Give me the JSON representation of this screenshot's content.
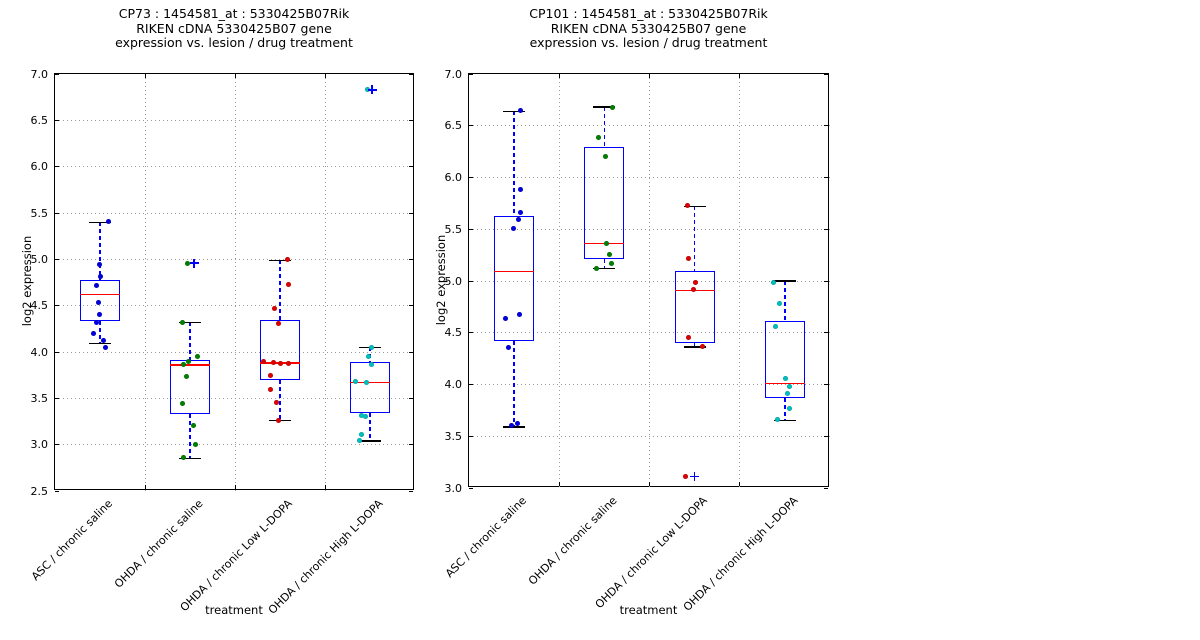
{
  "figure": {
    "background": "#ffffff",
    "grid_color": "#9a9a9a",
    "box_edge_color": "#0000ff",
    "median_color": "#ff0000",
    "whisker_color": "#0000ff",
    "cap_color": "#000000",
    "flier_color": "#0000ff",
    "text_color": "#000000"
  },
  "chart_data": [
    {
      "type": "box",
      "id": "CP73",
      "title_lines": [
        "CP73 : 1454581_at : 5330425B07Rik",
        "RIKEN cDNA 5330425B07 gene",
        "expression vs. lesion / drug treatment"
      ],
      "ylabel": "log2 expression",
      "xlabel": "treatment",
      "ylim": [
        2.5,
        7.0
      ],
      "ytick_labels": [
        "2.5",
        "3.0",
        "3.5",
        "4.0",
        "4.5",
        "5.0",
        "5.5",
        "6.0",
        "6.5",
        "7.0"
      ],
      "grid": true,
      "legend": null,
      "categories": [
        "ASC / chronic saline",
        "OHDA / chronic saline",
        "OHDA / chronic Low L-DOPA",
        "OHDA / chronic High L-DOPA"
      ],
      "groups": [
        {
          "category": "ASC / chronic saline",
          "point_color": "#0000e0",
          "box": {
            "q1": 4.33,
            "median": 4.62,
            "q3": 4.78,
            "whisker_low": 4.09,
            "whisker_high": 5.4
          },
          "points": [
            [
              5.41,
              8
            ],
            [
              4.94,
              -1
            ],
            [
              4.82,
              0
            ],
            [
              4.72,
              -4
            ],
            [
              4.53,
              -2
            ],
            [
              4.41,
              -1
            ],
            [
              4.32,
              -4
            ],
            [
              4.2,
              -7
            ],
            [
              4.12,
              3
            ],
            [
              4.05,
              5
            ]
          ],
          "fliers": []
        },
        {
          "category": "OHDA / chronic saline",
          "point_color": "#008000",
          "box": {
            "q1": 3.33,
            "median": 3.86,
            "q3": 3.91,
            "whisker_low": 2.85,
            "whisker_high": 4.32
          },
          "points": [
            [
              4.96,
              -3
            ],
            [
              4.32,
              -8
            ],
            [
              3.95,
              7
            ],
            [
              3.9,
              -2
            ],
            [
              3.86,
              -7
            ],
            [
              3.74,
              -4
            ],
            [
              3.44,
              -8
            ],
            [
              3.21,
              3
            ],
            [
              3.0,
              5
            ],
            [
              2.86,
              -7
            ]
          ],
          "fliers": [
            [
              4.96,
              4
            ]
          ]
        },
        {
          "category": "OHDA / chronic Low L-DOPA",
          "point_color": "#dd0000",
          "box": {
            "q1": 3.7,
            "median": 3.88,
            "q3": 4.35,
            "whisker_low": 3.26,
            "whisker_high": 4.99
          },
          "points": [
            [
              5.0,
              7
            ],
            [
              4.73,
              8
            ],
            [
              4.47,
              -6
            ],
            [
              4.31,
              -2
            ],
            [
              3.9,
              -17
            ],
            [
              3.89,
              -7
            ],
            [
              3.88,
              0
            ],
            [
              3.88,
              8
            ],
            [
              3.75,
              -10
            ],
            [
              3.59,
              -10
            ],
            [
              3.45,
              -4
            ],
            [
              3.26,
              -2
            ]
          ],
          "fliers": []
        },
        {
          "category": "OHDA / chronic High L-DOPA",
          "point_color": "#00bfbf",
          "box": {
            "q1": 3.34,
            "median": 3.67,
            "q3": 3.89,
            "whisker_low": 3.04,
            "whisker_high": 4.05
          },
          "points": [
            [
              6.83,
              -3
            ],
            [
              4.05,
              1
            ],
            [
              3.95,
              -2
            ],
            [
              3.87,
              1
            ],
            [
              3.68,
              -15
            ],
            [
              3.67,
              -4
            ],
            [
              3.31,
              -9
            ],
            [
              3.3,
              -5
            ],
            [
              3.11,
              -9
            ],
            [
              3.05,
              -11
            ]
          ],
          "fliers": [
            [
              6.83,
              2
            ]
          ]
        }
      ]
    },
    {
      "type": "box",
      "id": "CP101",
      "title_lines": [
        "CP101 : 1454581_at : 5330425B07Rik",
        "RIKEN cDNA 5330425B07 gene",
        "expression vs. lesion / drug treatment"
      ],
      "ylabel": "log2 expression",
      "xlabel": "treatment",
      "ylim": [
        3.0,
        7.0
      ],
      "ytick_labels": [
        "3.0",
        "3.5",
        "4.0",
        "4.5",
        "5.0",
        "5.5",
        "6.0",
        "6.5",
        "7.0"
      ],
      "grid": true,
      "legend": null,
      "categories": [
        "ASC / chronic saline",
        "OHDA / chronic saline",
        "OHDA / chronic Low L-DOPA",
        "OHDA / chronic High L-DOPA"
      ],
      "groups": [
        {
          "category": "ASC / chronic saline",
          "point_color": "#0000e0",
          "box": {
            "q1": 4.42,
            "median": 5.09,
            "q3": 5.63,
            "whisker_low": 3.59,
            "whisker_high": 6.64
          },
          "points": [
            [
              6.65,
              6
            ],
            [
              5.88,
              6
            ],
            [
              5.66,
              6
            ],
            [
              5.59,
              4
            ],
            [
              5.51,
              -1
            ],
            [
              4.68,
              5
            ],
            [
              4.64,
              -9
            ],
            [
              4.36,
              -6
            ],
            [
              3.62,
              3
            ],
            [
              3.6,
              -3
            ]
          ],
          "fliers": []
        },
        {
          "category": "OHDA / chronic saline",
          "point_color": "#008000",
          "box": {
            "q1": 5.21,
            "median": 5.36,
            "q3": 6.29,
            "whisker_low": 5.12,
            "whisker_high": 6.68
          },
          "points": [
            [
              6.68,
              8
            ],
            [
              6.39,
              -6
            ],
            [
              6.2,
              1
            ],
            [
              5.36,
              2
            ],
            [
              5.26,
              5
            ],
            [
              5.17,
              7
            ],
            [
              5.12,
              -8
            ]
          ],
          "fliers": []
        },
        {
          "category": "OHDA / chronic Low L-DOPA",
          "point_color": "#dd0000",
          "box": {
            "q1": 4.4,
            "median": 4.91,
            "q3": 5.1,
            "whisker_low": 4.36,
            "whisker_high": 5.72
          },
          "points": [
            [
              5.73,
              -7
            ],
            [
              5.22,
              -6
            ],
            [
              4.99,
              1
            ],
            [
              4.92,
              -1
            ],
            [
              4.45,
              -6
            ],
            [
              4.37,
              8
            ],
            [
              3.11,
              -9
            ]
          ],
          "fliers": [
            [
              3.11,
              0
            ]
          ]
        },
        {
          "category": "OHDA / chronic High L-DOPA",
          "point_color": "#00bfbf",
          "box": {
            "q1": 3.87,
            "median": 4.01,
            "q3": 4.61,
            "whisker_low": 3.65,
            "whisker_high": 5.0
          },
          "points": [
            [
              4.99,
              -11
            ],
            [
              4.78,
              -5
            ],
            [
              4.56,
              -9
            ],
            [
              4.06,
              1
            ],
            [
              3.98,
              5
            ],
            [
              3.91,
              3
            ],
            [
              3.77,
              5
            ],
            [
              3.66,
              -7
            ]
          ],
          "fliers": []
        }
      ]
    }
  ]
}
